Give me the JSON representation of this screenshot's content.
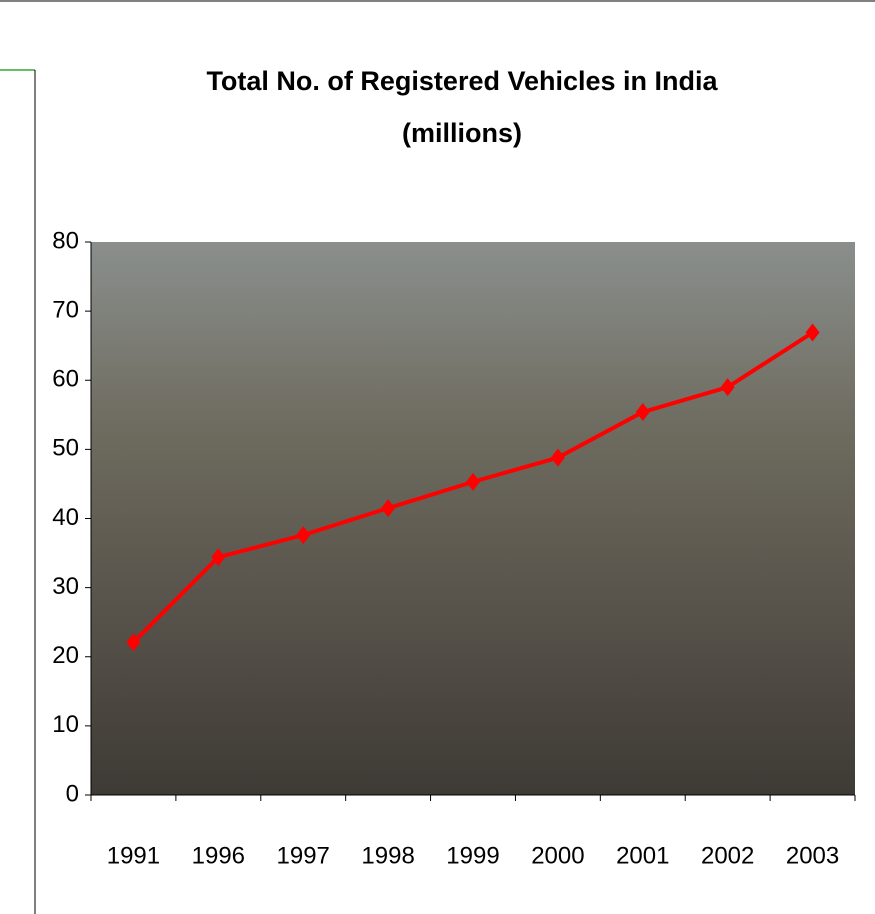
{
  "chart_data": {
    "type": "line",
    "title": "Total No. of Registered Vehicles in India",
    "subtitle": "(millions)",
    "categories": [
      "1991",
      "1996",
      "1997",
      "1998",
      "1999",
      "2000",
      "2001",
      "2002",
      "2003"
    ],
    "values": [
      22.1,
      34.4,
      37.6,
      41.5,
      45.3,
      48.8,
      55.4,
      59.0,
      66.9
    ],
    "color": "#ff0000",
    "ylim": [
      0,
      80
    ],
    "yticks": [
      0,
      10,
      20,
      30,
      40,
      50,
      60,
      70,
      80
    ],
    "grid": false
  }
}
